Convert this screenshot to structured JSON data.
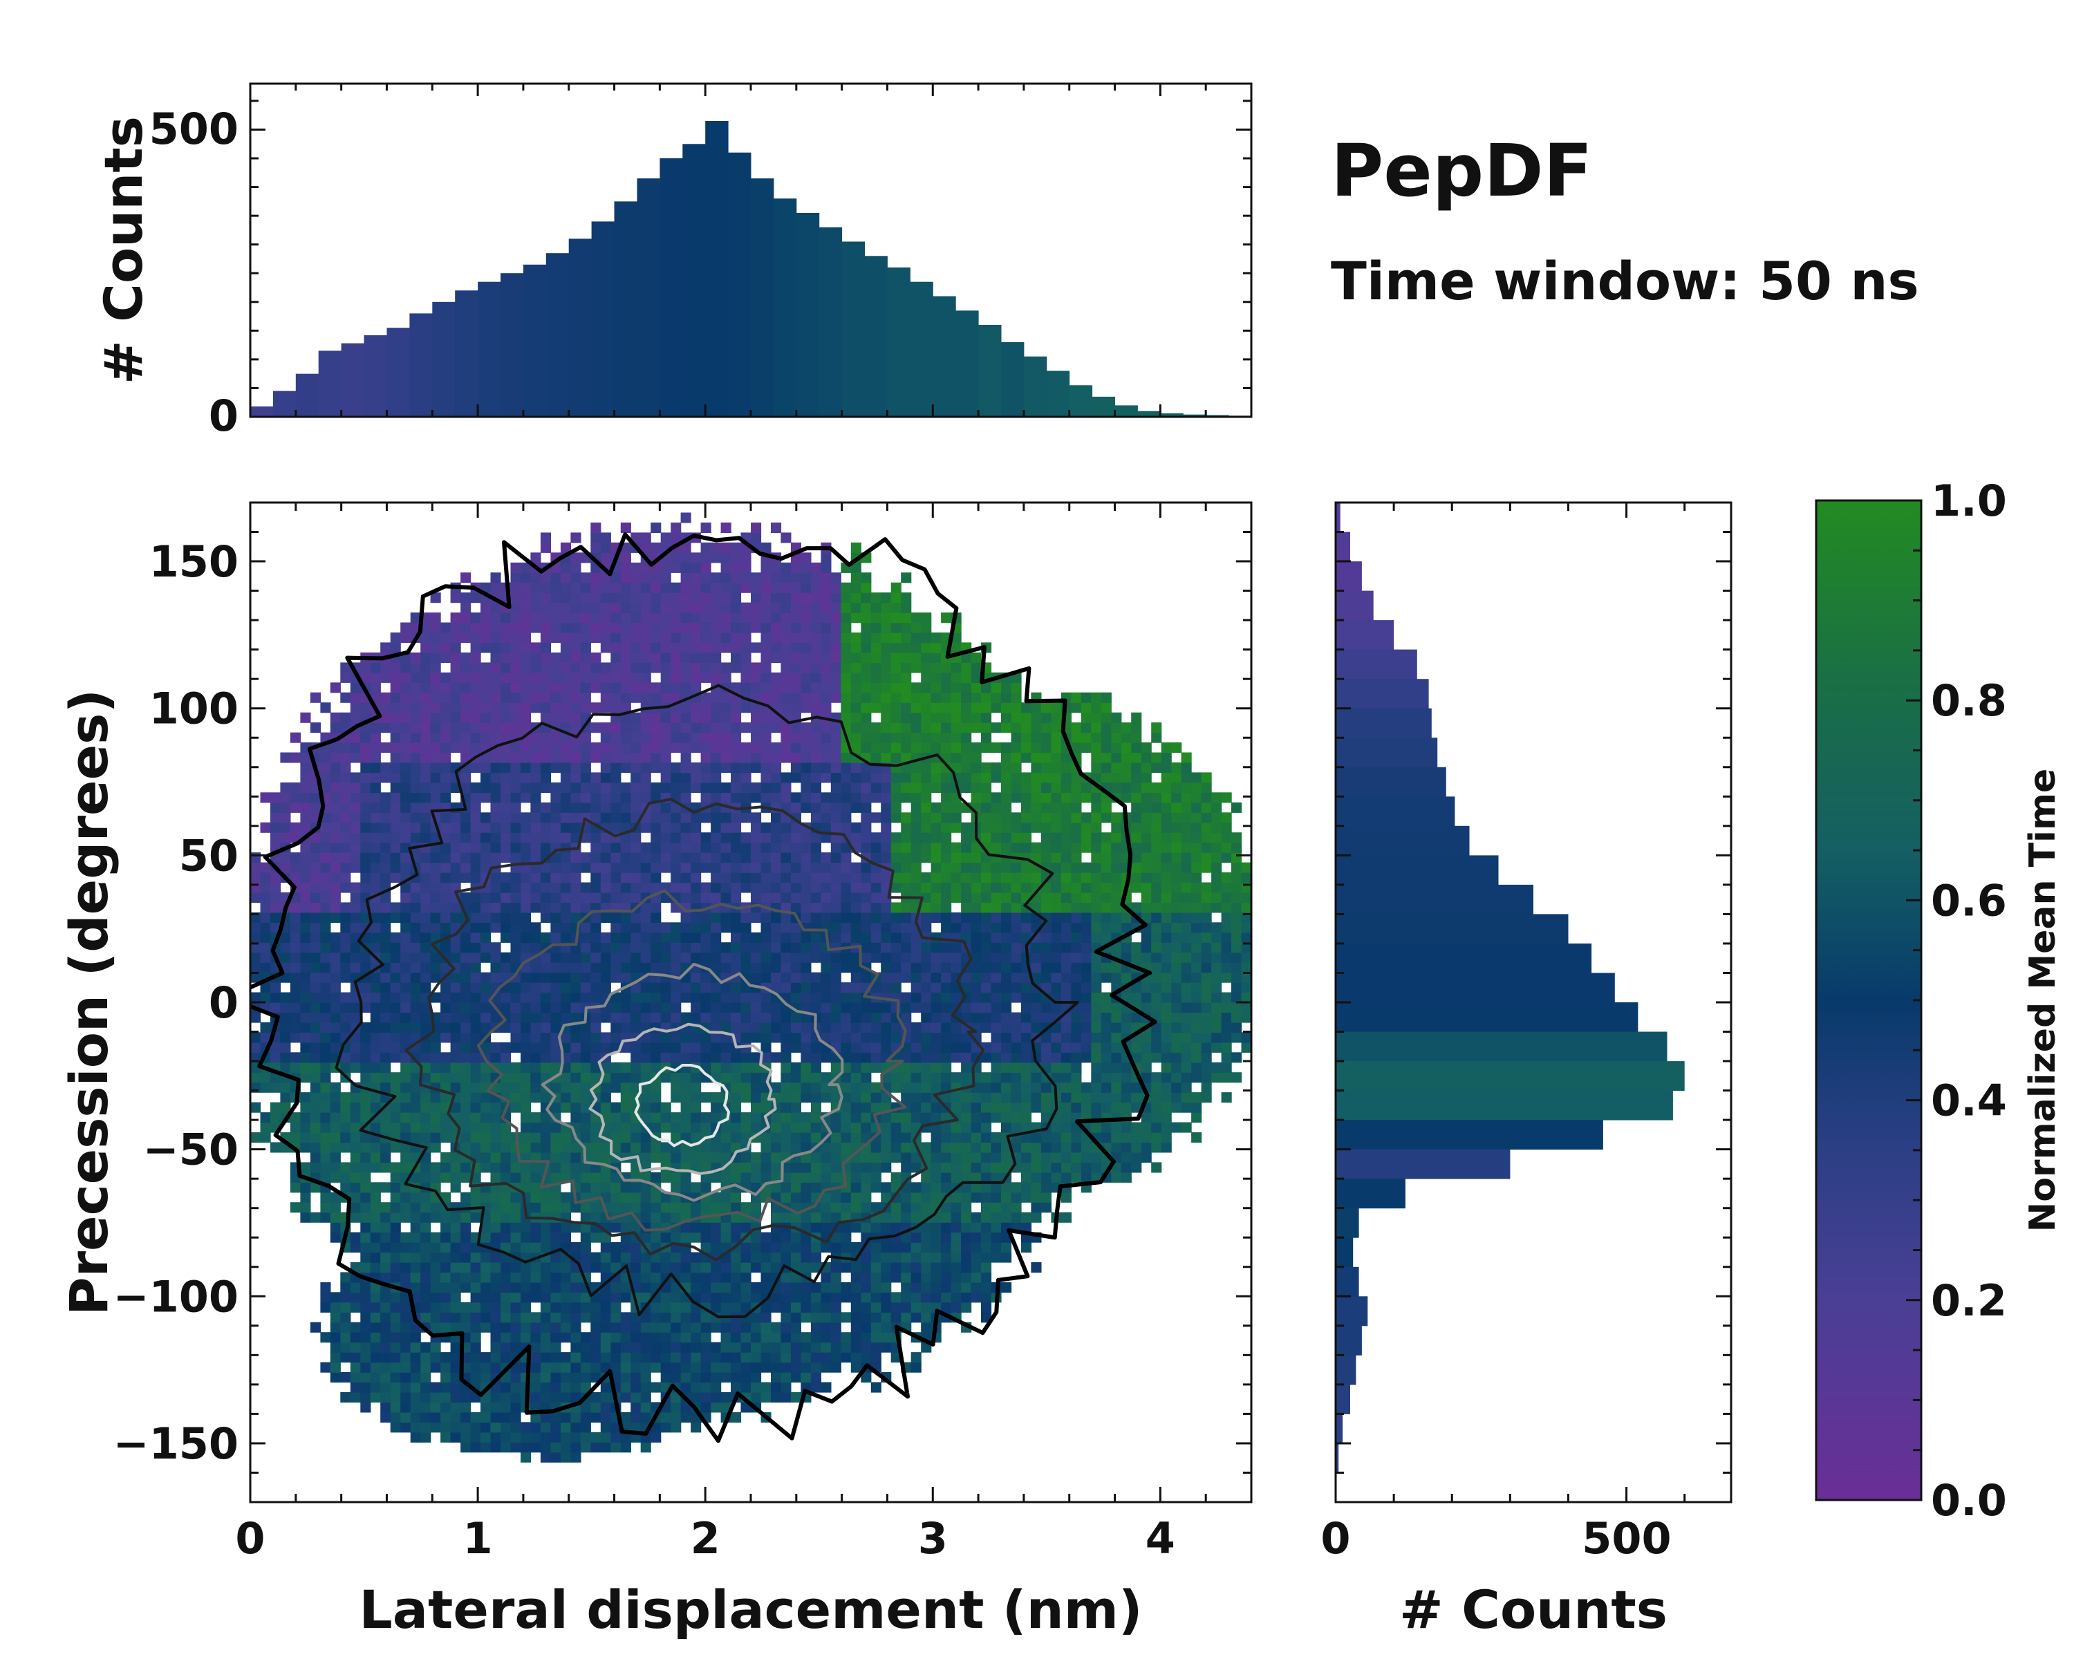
{
  "chart_data": {
    "title": "PepDF",
    "subtitle": "Time window: 50 ns",
    "main": {
      "type": "heatmap",
      "xlabel": "Lateral displacement (nm)",
      "ylabel": "Precession (degrees)",
      "xlim": [
        0,
        4.4
      ],
      "ylim": [
        -170,
        170
      ],
      "xticks": [
        0,
        1,
        2,
        3,
        4
      ],
      "yticks": [
        150,
        100,
        50,
        0,
        -50,
        -100,
        -150
      ],
      "ytick_labels": [
        "150",
        "100",
        "50",
        "0",
        "−50",
        "−100",
        "−150"
      ],
      "color_meaning": "Normalized Mean Time",
      "density_peak": [
        1.9,
        -35
      ],
      "contours": "density contour lines, black at low density to light grey at high density"
    },
    "top_histogram": {
      "type": "bar",
      "ylabel": "# Counts",
      "yticks": [
        0,
        500
      ],
      "ylim": [
        0,
        580
      ],
      "x_centers": [
        0.05,
        0.15,
        0.25,
        0.35,
        0.45,
        0.55,
        0.65,
        0.75,
        0.85,
        0.95,
        1.05,
        1.15,
        1.25,
        1.35,
        1.45,
        1.55,
        1.65,
        1.75,
        1.85,
        1.95,
        2.05,
        2.15,
        2.25,
        2.35,
        2.45,
        2.55,
        2.65,
        2.75,
        2.85,
        2.95,
        3.05,
        3.15,
        3.25,
        3.35,
        3.45,
        3.55,
        3.65,
        3.75,
        3.85,
        3.95,
        4.05,
        4.15,
        4.25,
        4.35
      ],
      "values": [
        18,
        45,
        75,
        115,
        128,
        142,
        155,
        180,
        200,
        220,
        235,
        250,
        265,
        285,
        310,
        340,
        375,
        415,
        450,
        475,
        515,
        460,
        415,
        380,
        355,
        330,
        305,
        280,
        260,
        235,
        210,
        185,
        160,
        130,
        105,
        80,
        55,
        35,
        20,
        10,
        6,
        4,
        3,
        2
      ],
      "color_index": [
        0.25,
        0.3,
        0.32,
        0.3,
        0.28,
        0.3,
        0.33,
        0.36,
        0.38,
        0.4,
        0.42,
        0.43,
        0.44,
        0.45,
        0.46,
        0.47,
        0.48,
        0.48,
        0.49,
        0.5,
        0.5,
        0.51,
        0.52,
        0.54,
        0.55,
        0.56,
        0.58,
        0.58,
        0.6,
        0.6,
        0.6,
        0.6,
        0.62,
        0.6,
        0.62,
        0.63,
        0.65,
        0.66,
        0.66,
        0.67,
        0.66,
        0.66,
        0.66,
        0.66
      ]
    },
    "right_histogram": {
      "type": "bar",
      "orientation": "horizontal",
      "xlabel": "# Counts",
      "xticks": [
        0,
        500
      ],
      "xlim": [
        0,
        680
      ],
      "y_centers": [
        165,
        155,
        145,
        135,
        125,
        115,
        105,
        95,
        85,
        75,
        65,
        55,
        45,
        35,
        25,
        15,
        5,
        -5,
        -15,
        -25,
        -35,
        -45,
        -55,
        -65,
        -75,
        -85,
        -95,
        -105,
        -115,
        -125,
        -135,
        -145,
        -155,
        -165
      ],
      "values": [
        8,
        25,
        45,
        65,
        100,
        140,
        160,
        165,
        175,
        190,
        205,
        230,
        280,
        340,
        400,
        440,
        480,
        520,
        570,
        600,
        580,
        460,
        300,
        120,
        40,
        30,
        40,
        55,
        45,
        35,
        25,
        12,
        5,
        0
      ],
      "color_index": [
        0.15,
        0.15,
        0.15,
        0.18,
        0.22,
        0.27,
        0.33,
        0.38,
        0.4,
        0.43,
        0.45,
        0.46,
        0.47,
        0.47,
        0.48,
        0.49,
        0.49,
        0.5,
        0.6,
        0.66,
        0.64,
        0.5,
        0.38,
        0.5,
        0.52,
        0.5,
        0.45,
        0.42,
        0.42,
        0.4,
        0.38,
        0.35,
        0.32,
        0.3
      ]
    },
    "colorbar": {
      "label": "Normalized Mean Time",
      "range": [
        0.0,
        1.0
      ],
      "ticks": [
        "0.0",
        "0.2",
        "0.4",
        "0.6",
        "0.8",
        "1.0"
      ],
      "stops": [
        {
          "v": 0.0,
          "color": "#6a2f97"
        },
        {
          "v": 0.2,
          "color": "#4a3f95"
        },
        {
          "v": 0.35,
          "color": "#2c3f85"
        },
        {
          "v": 0.5,
          "color": "#083a6b"
        },
        {
          "v": 0.65,
          "color": "#145f63"
        },
        {
          "v": 0.82,
          "color": "#1a6f45"
        },
        {
          "v": 1.0,
          "color": "#228b22"
        }
      ]
    }
  }
}
